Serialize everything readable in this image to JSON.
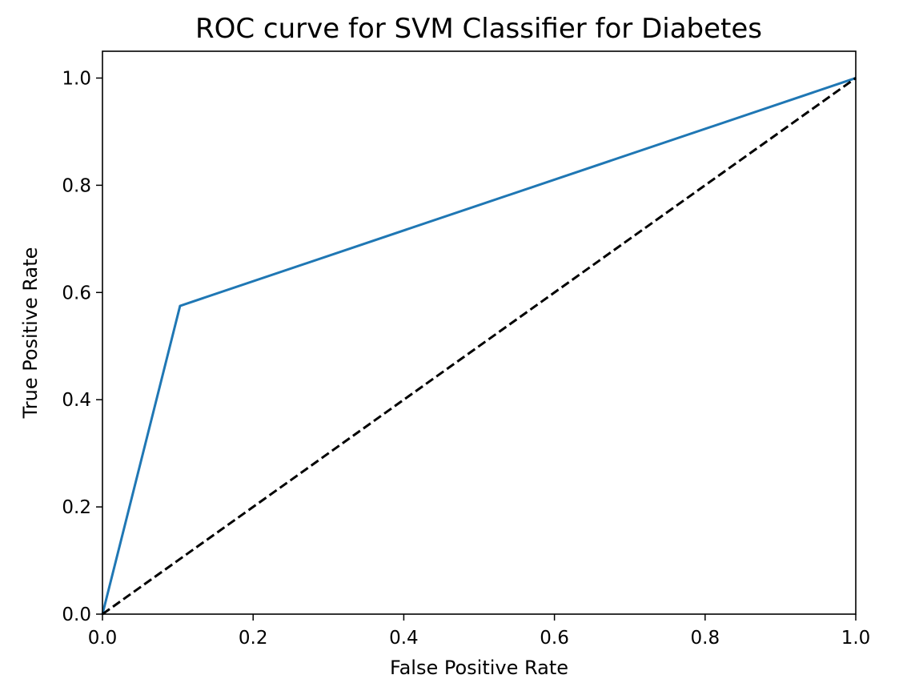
{
  "chart_data": {
    "type": "line",
    "title": "ROC curve for SVM Classifier for Diabetes",
    "xlabel": "False Positive Rate",
    "ylabel": "True Positive Rate",
    "xlim": [
      0.0,
      1.0
    ],
    "ylim": [
      0.0,
      1.05
    ],
    "x_ticks": [
      "0.0",
      "0.2",
      "0.4",
      "0.6",
      "0.8",
      "1.0"
    ],
    "y_ticks": [
      "0.0",
      "0.2",
      "0.4",
      "0.6",
      "0.8",
      "1.0"
    ],
    "grid": false,
    "series": [
      {
        "style": "solid",
        "color": "#1f77b4",
        "x": [
          0.0,
          0.103,
          1.0
        ],
        "y": [
          0.0,
          0.575,
          1.0
        ]
      },
      {
        "style": "dashed",
        "color": "#000000",
        "x": [
          0.0,
          1.0
        ],
        "y": [
          0.0,
          1.0
        ]
      }
    ]
  }
}
